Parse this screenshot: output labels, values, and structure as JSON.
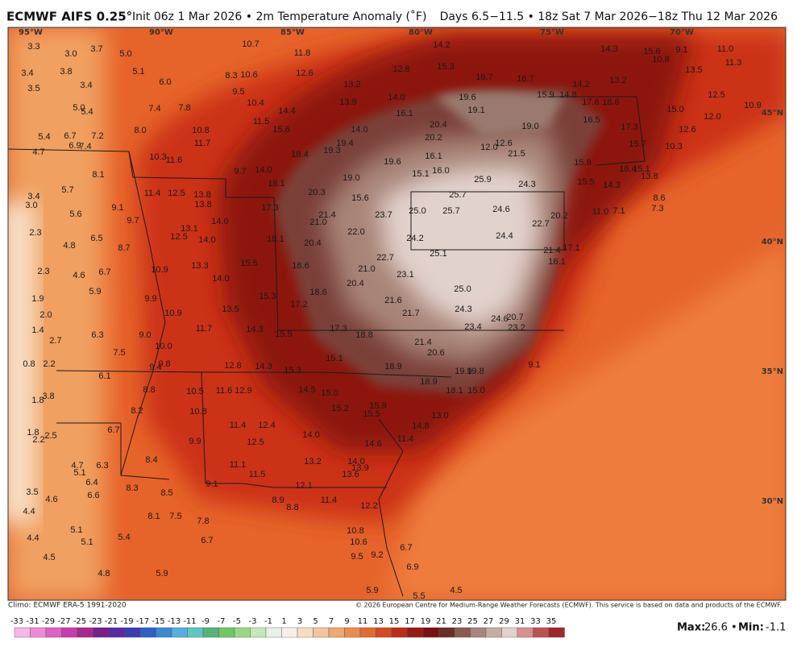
{
  "header": {
    "title": "ECMWF AIFS 0.25°",
    "subtitle": "Init 06z 1 Mar 2026 • 2m Temperature Anomaly (˚F)",
    "valid": "Days 6.5−11.5 • 18z Sat 7 Mar 2026−18z Thu 12 Mar 2026"
  },
  "map": {
    "lon_labels": [
      "95°W",
      "90°W",
      "85°W",
      "80°W",
      "75°W",
      "70°W"
    ],
    "lat_labels": [
      "45°N",
      "40°N",
      "35°N",
      "30°N"
    ],
    "values": [
      "3.3",
      "3.0",
      "3.7",
      "5.0",
      "3.4",
      "3.8",
      "3.5",
      "3.4",
      "5.1",
      "6.0",
      "5.0",
      "5.4",
      "7.4",
      "7.8",
      "10.7",
      "11.8",
      "8.3",
      "10.6",
      "12.6",
      "9.5",
      "10.4",
      "14.4",
      "11.5",
      "15.6",
      "13.2",
      "13.9",
      "12.8",
      "14.2",
      "15.3",
      "16.7",
      "16.7",
      "14.2",
      "13.2",
      "14.3",
      "15.6",
      "10.8",
      "9.1",
      "11.0",
      "11.3",
      "13.5",
      "12.5",
      "15.0",
      "12.0",
      "10.9",
      "12.6",
      "10.3",
      "15.7",
      "17.3",
      "18.6",
      "17.6",
      "16.5",
      "15.9",
      "14.8",
      "19.6",
      "19.1",
      "19.0",
      "12.6",
      "12.0",
      "21.5",
      "14.0",
      "16.1",
      "20.4",
      "20.2",
      "14.0",
      "19.4",
      "19.3",
      "18.4",
      "19.6",
      "16.1",
      "16.0",
      "15.1",
      "19.0",
      "14.0",
      "9.7",
      "18.1",
      "10.8",
      "11.7",
      "10.3",
      "11.6",
      "5.4",
      "6.7",
      "7.2",
      "4.7",
      "6.9",
      "7.4",
      "8.0",
      "8.1",
      "5.7",
      "3.4",
      "3.0",
      "5.6",
      "9.1",
      "9.7",
      "11.4",
      "12.5",
      "13.8",
      "13.8",
      "17.3",
      "20.3",
      "15.6",
      "21.4",
      "21.0",
      "20.4",
      "22.0",
      "23.7",
      "25.0",
      "25.7",
      "25.7",
      "25.9",
      "24.3",
      "24.6",
      "20.2",
      "22.7",
      "24.4",
      "24.2",
      "25.1",
      "22.7",
      "21.0",
      "20.4",
      "23.1",
      "18.6",
      "18.1",
      "15.5",
      "14.0",
      "13.1",
      "12.5",
      "14.0",
      "13.3",
      "14.0",
      "10.9",
      "2.3",
      "4.8",
      "6.5",
      "8.7",
      "2.3",
      "4.6",
      "6.7",
      "5.9",
      "1.9",
      "2.0",
      "1.4",
      "2.7",
      "6.3",
      "7.5",
      "9.9",
      "10.9",
      "15.3",
      "17.2",
      "18.6",
      "13.5",
      "11.7",
      "14.3",
      "15.5",
      "17.3",
      "18.8",
      "21.6",
      "21.7",
      "25.0",
      "24.3",
      "23.4",
      "24.6",
      "20.7",
      "23.2",
      "21.4",
      "17.1",
      "16.1",
      "9.0",
      "10.0",
      "0.8",
      "2.2",
      "6.1",
      "9.8",
      "9.4",
      "12.8",
      "14.3",
      "15.3",
      "15.1",
      "18.9",
      "21.4",
      "20.6",
      "19.9",
      "19.8",
      "9.1",
      "18.9",
      "18.1",
      "15.0",
      "8.8",
      "10.5",
      "11.6",
      "12.9",
      "14.5",
      "15.0",
      "15.2",
      "15.9",
      "15.5",
      "13.0",
      "14.8",
      "11.4",
      "3.8",
      "1.8",
      "8.2",
      "10.8",
      "1.8",
      "2.5",
      "2.2",
      "6.7",
      "11.4",
      "12.4",
      "12.5",
      "14.0",
      "14.6",
      "9.9",
      "8.4",
      "4.7",
      "5.1",
      "6.3",
      "6.4",
      "6.6",
      "8.3",
      "11.1",
      "11.5",
      "13.2",
      "14.0",
      "13.9",
      "13.6",
      "12.1",
      "9.1",
      "3.5",
      "4.6",
      "4.4",
      "8.5",
      "8.9",
      "8.8",
      "11.4",
      "12.2",
      "8.1",
      "7.5",
      "7.8",
      "5.1",
      "4.4",
      "5.1",
      "5.4",
      "6.7",
      "10.8",
      "10.6",
      "9.2",
      "9.5",
      "6.7",
      "6.9",
      "4.5",
      "4.8",
      "5.9",
      "5.9",
      "5.5",
      "4.5",
      "16.4",
      "15.1",
      "13.8",
      "14.3",
      "15.5",
      "15.8",
      "11.0",
      "7.1",
      "8.6",
      "7.3"
    ]
  },
  "footer": {
    "climo": "Climo: ECMWF ERA-5 1991-2020",
    "credit": "© 2026 European Centre for Medium-Range Weather Forecasts (ECMWF). This service is based on data and products of the ECMWF.",
    "colorbar": {
      "ticks": [
        -33,
        -31,
        -29,
        -27,
        -25,
        -23,
        -21,
        -19,
        -17,
        -15,
        -13,
        -11,
        -9,
        -7,
        -5,
        -3,
        -1,
        1,
        3,
        5,
        7,
        9,
        11,
        13,
        15,
        17,
        19,
        21,
        23,
        25,
        27,
        29,
        31,
        33,
        35
      ],
      "colors": [
        "#f6b8e8",
        "#f08ad8",
        "#e060c8",
        "#c83cb0",
        "#a82890",
        "#7a1e8c",
        "#5a2aa0",
        "#3c3cb4",
        "#2c60c8",
        "#3a88d8",
        "#52b0e0",
        "#5cc8c0",
        "#52b478",
        "#6ec864",
        "#9ad888",
        "#c4e8b8",
        "#e8f0e8",
        "#f8f0e8",
        "#f6dcc4",
        "#f4c49a",
        "#f0a870",
        "#ec8c4c",
        "#e46a30",
        "#d44a22",
        "#bc2c18",
        "#9a1a10",
        "#7a1010",
        "#6a2e26",
        "#8a5a50",
        "#a8847c",
        "#c8aca4",
        "#e4d0cc",
        "#d89090",
        "#c05050",
        "#a02828"
      ]
    },
    "max_label": "Max:",
    "max": 26.6,
    "separator": "•",
    "min_label": "Min:",
    "min": -1.1
  }
}
